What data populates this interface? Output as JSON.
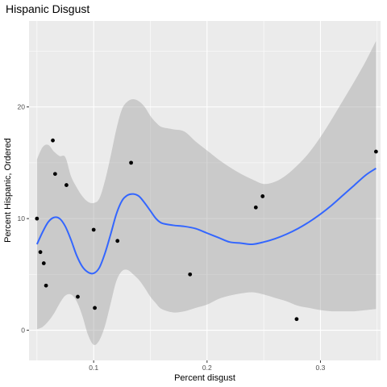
{
  "chart_data": {
    "type": "scatter",
    "title": "Hispanic Disgust",
    "xlabel": "Percent disgust",
    "ylabel": "Percent Hispanic, Ordered",
    "xlim": [
      0.043,
      0.353
    ],
    "ylim": [
      -2.7,
      27.7
    ],
    "x_ticks": [
      0.1,
      0.2,
      0.3
    ],
    "x_tick_labels": [
      "0.1",
      "0.2",
      "0.3"
    ],
    "y_ticks": [
      0,
      10,
      20
    ],
    "y_tick_labels": [
      "0",
      "10",
      "20"
    ],
    "grid": true,
    "points": [
      {
        "x": 0.05,
        "y": 10
      },
      {
        "x": 0.053,
        "y": 7
      },
      {
        "x": 0.056,
        "y": 6
      },
      {
        "x": 0.058,
        "y": 4
      },
      {
        "x": 0.064,
        "y": 17
      },
      {
        "x": 0.066,
        "y": 14
      },
      {
        "x": 0.076,
        "y": 13
      },
      {
        "x": 0.086,
        "y": 3
      },
      {
        "x": 0.1,
        "y": 9
      },
      {
        "x": 0.101,
        "y": 2
      },
      {
        "x": 0.121,
        "y": 8
      },
      {
        "x": 0.133,
        "y": 15
      },
      {
        "x": 0.185,
        "y": 5
      },
      {
        "x": 0.243,
        "y": 11
      },
      {
        "x": 0.249,
        "y": 12
      },
      {
        "x": 0.279,
        "y": 1
      },
      {
        "x": 0.349,
        "y": 16
      }
    ],
    "smooth": {
      "color": "#3366FF",
      "band_color": "#999999",
      "x": [
        0.05,
        0.055,
        0.06,
        0.065,
        0.07,
        0.075,
        0.08,
        0.085,
        0.09,
        0.095,
        0.1,
        0.105,
        0.11,
        0.115,
        0.12,
        0.125,
        0.13,
        0.135,
        0.14,
        0.145,
        0.15,
        0.155,
        0.16,
        0.17,
        0.18,
        0.19,
        0.2,
        0.21,
        0.22,
        0.23,
        0.24,
        0.25,
        0.26,
        0.27,
        0.28,
        0.29,
        0.3,
        0.31,
        0.32,
        0.33,
        0.34,
        0.349
      ],
      "fit": [
        7.7,
        8.8,
        9.7,
        10.1,
        10.0,
        9.3,
        8.1,
        6.7,
        5.7,
        5.2,
        5.1,
        5.6,
        6.9,
        8.6,
        10.4,
        11.6,
        12.1,
        12.2,
        12.0,
        11.4,
        10.7,
        10.0,
        9.6,
        9.4,
        9.3,
        9.1,
        8.7,
        8.3,
        7.9,
        7.8,
        7.7,
        7.9,
        8.2,
        8.6,
        9.1,
        9.7,
        10.4,
        11.2,
        12.1,
        13.0,
        13.9,
        14.5
      ],
      "lower": [
        0.1,
        0.3,
        0.8,
        1.5,
        2.4,
        3.1,
        3.2,
        2.6,
        1.3,
        -0.4,
        -1.3,
        -0.9,
        0.4,
        2.4,
        4.4,
        5.3,
        5.4,
        5.0,
        4.5,
        3.8,
        3.0,
        2.4,
        1.9,
        1.6,
        1.7,
        2.0,
        2.3,
        2.8,
        3.1,
        3.3,
        3.4,
        3.2,
        2.9,
        2.6,
        2.2,
        2.0,
        1.8,
        1.7,
        1.7,
        1.7,
        1.8,
        1.9
      ],
      "upper": [
        15.3,
        16.4,
        16.6,
        16.0,
        15.6,
        15.5,
        13.8,
        12.8,
        12.0,
        11.5,
        11.4,
        11.8,
        13.4,
        15.6,
        18.0,
        19.8,
        20.5,
        20.7,
        20.5,
        20.0,
        19.2,
        18.6,
        18.2,
        18.0,
        17.8,
        16.9,
        16.1,
        15.3,
        14.6,
        14.0,
        13.5,
        13.1,
        13.3,
        13.9,
        14.8,
        15.9,
        17.3,
        18.9,
        20.6,
        22.3,
        24.1,
        25.9
      ]
    }
  }
}
